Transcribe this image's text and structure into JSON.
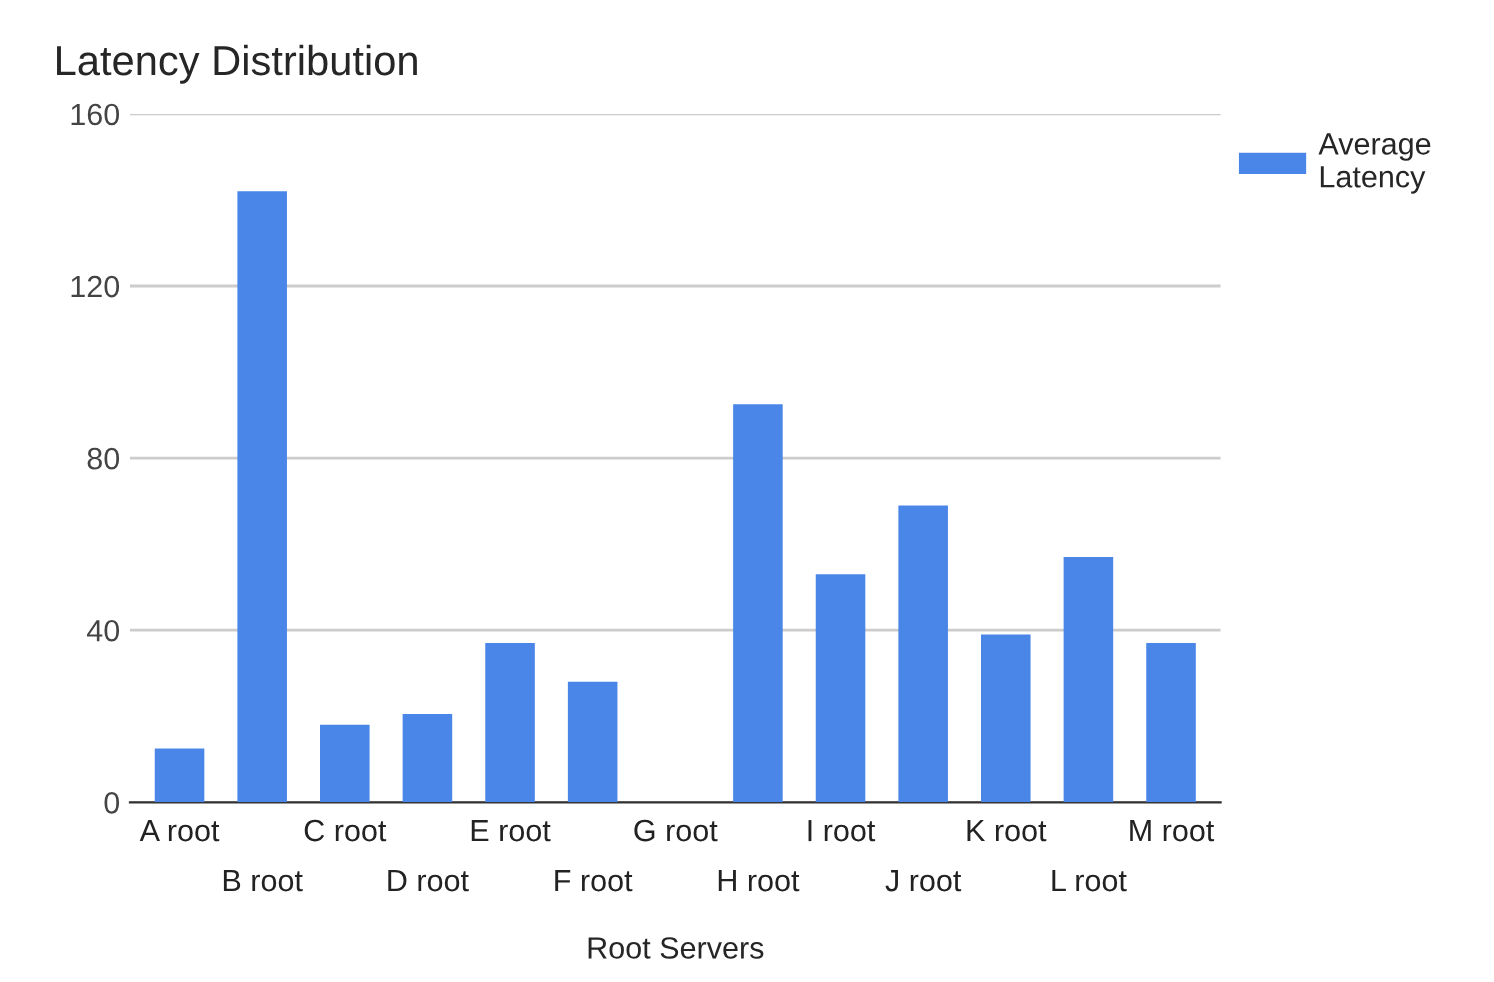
{
  "chart_data": {
    "type": "bar",
    "title": "Latency Distribution",
    "xlabel": "Root Servers",
    "categories": [
      "A root",
      "B root",
      "C root",
      "D root",
      "E root",
      "F root",
      "G root",
      "H root",
      "I root",
      "J root",
      "K root",
      "L root",
      "M root"
    ],
    "series": [
      {
        "name": "Average Latency",
        "color": "#4a86e8",
        "values": [
          12.5,
          142,
          18,
          20.5,
          37,
          28,
          null,
          92.5,
          53,
          69,
          39,
          57,
          37
        ]
      }
    ],
    "ylim": [
      0,
      160
    ],
    "yticks": [
      0,
      40,
      80,
      120,
      160
    ],
    "grid": "y",
    "legend": "top right"
  }
}
